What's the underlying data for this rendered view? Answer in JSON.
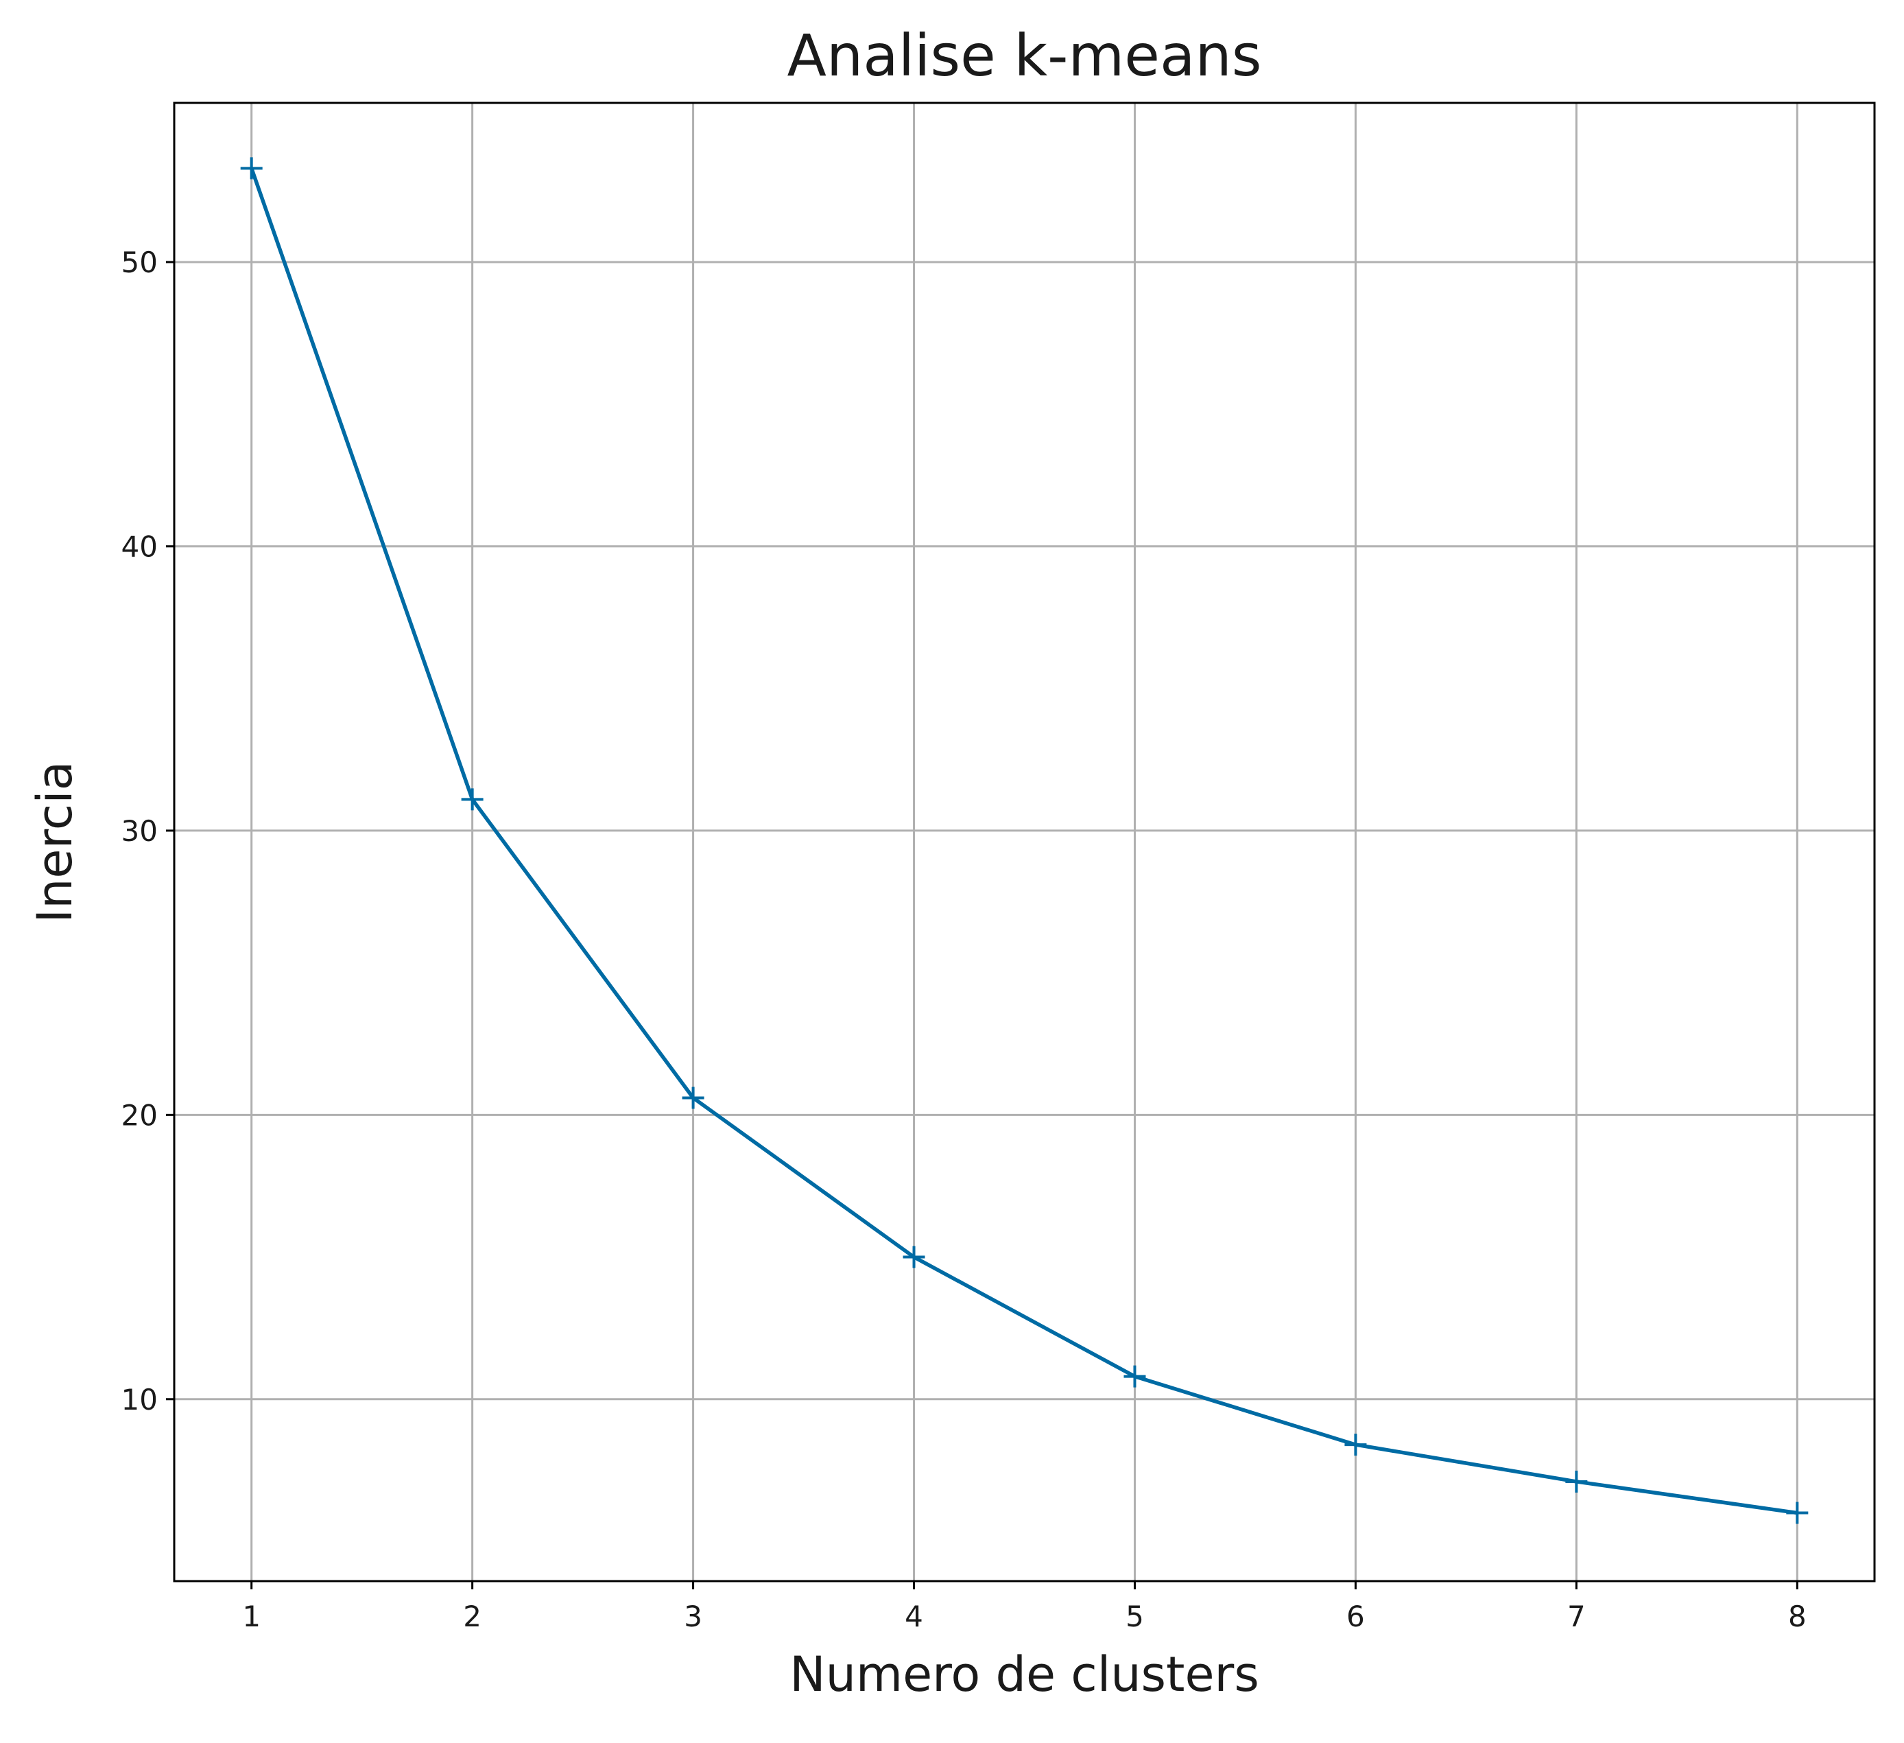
{
  "chart_data": {
    "type": "line",
    "title": "Analise k-means",
    "xlabel": "Numero de clusters",
    "ylabel": "Inercia",
    "x": [
      1,
      2,
      3,
      4,
      5,
      6,
      7,
      8
    ],
    "series": [
      {
        "values": [
          53.3,
          31.1,
          20.6,
          15.0,
          10.8,
          8.4,
          7.1,
          6.0
        ],
        "color": "#006ba4",
        "marker": "plus"
      }
    ],
    "xticks": [
      1,
      2,
      3,
      4,
      5,
      6,
      7,
      8
    ],
    "yticks": [
      10,
      20,
      30,
      40,
      50
    ],
    "xlim": [
      0.65,
      8.35
    ],
    "ylim": [
      3.6,
      55.6
    ],
    "grid": true,
    "grid_color": "#b0b0b0",
    "axis_color": "#000000"
  }
}
